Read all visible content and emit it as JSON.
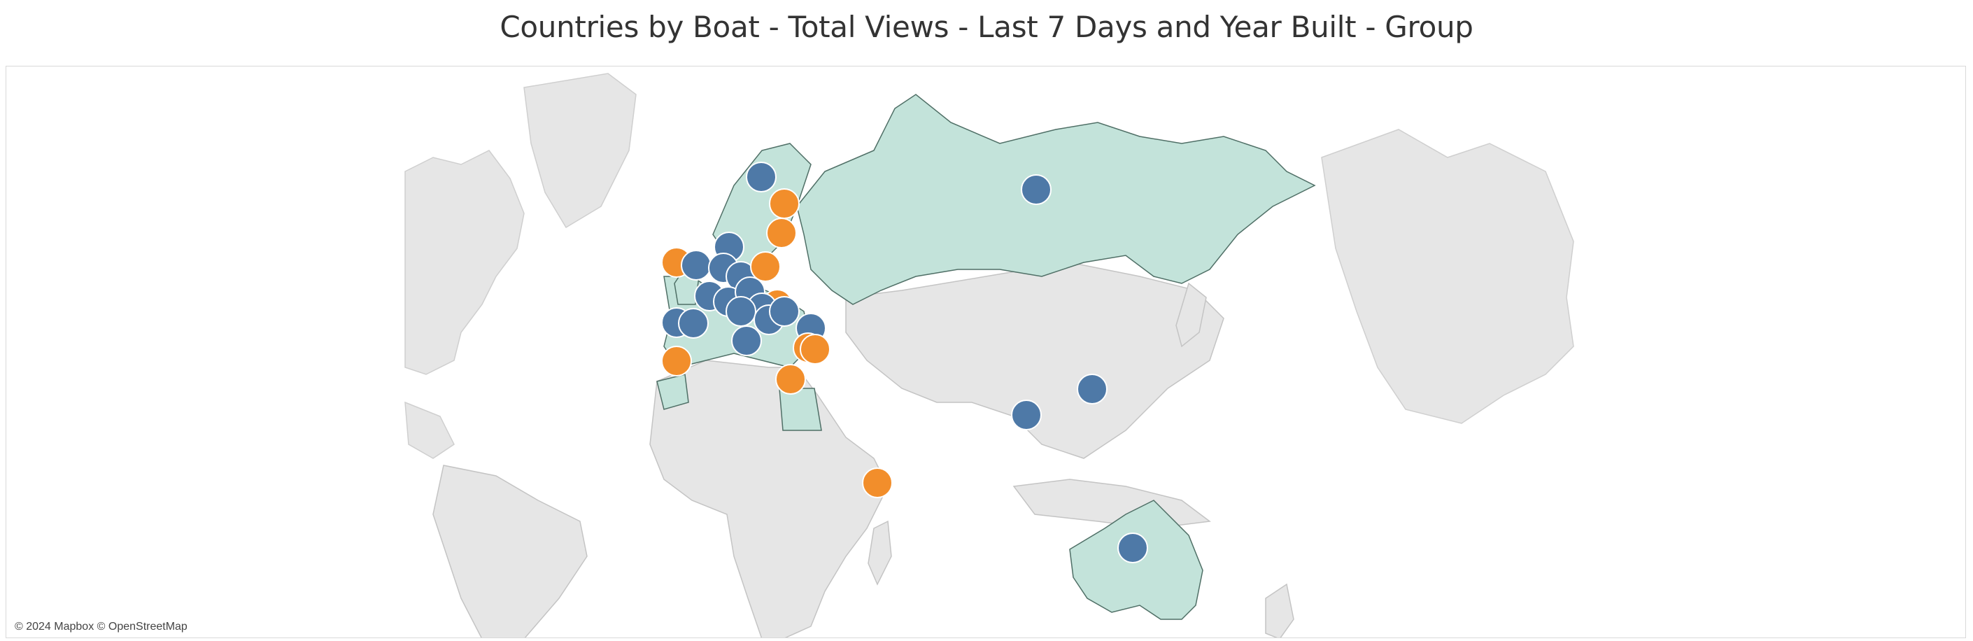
{
  "title": "Countries by Boat - Total Views - Last 7 Days  and Year Built - Group",
  "attribution": "© 2024 Mapbox © OpenStreetMap",
  "colors": {
    "land": "#e6e6e6",
    "land_border": "#c8c8c8",
    "highlight_land": "#c3e3da",
    "highlight_border": "#4f6f66",
    "group_blue": "#4e79a7",
    "group_orange": "#f28e2b",
    "marker_stroke": "#ffffff"
  },
  "map": {
    "basemap": "light world map",
    "highlighted_regions": [
      "russia",
      "nordic",
      "western-europe",
      "north-africa-egypt",
      "australia"
    ],
    "markers": [
      {
        "region": "Russia",
        "group": "blue"
      },
      {
        "region": "Norway",
        "group": "blue"
      },
      {
        "region": "Finland",
        "group": "orange"
      },
      {
        "region": "Baltics",
        "group": "orange"
      },
      {
        "region": "Denmark",
        "group": "blue"
      },
      {
        "region": "Ireland",
        "group": "orange"
      },
      {
        "region": "United Kingdom",
        "group": "blue"
      },
      {
        "region": "Netherlands",
        "group": "blue"
      },
      {
        "region": "Germany",
        "group": "blue"
      },
      {
        "region": "Poland",
        "group": "orange"
      },
      {
        "region": "France",
        "group": "blue"
      },
      {
        "region": "Switzerland",
        "group": "blue"
      },
      {
        "region": "Austria",
        "group": "blue"
      },
      {
        "region": "Hungary",
        "group": "orange"
      },
      {
        "region": "Croatia",
        "group": "blue"
      },
      {
        "region": "Italy",
        "group": "blue"
      },
      {
        "region": "Greece",
        "group": "blue"
      },
      {
        "region": "Bulgaria",
        "group": "blue"
      },
      {
        "region": "Portugal",
        "group": "blue"
      },
      {
        "region": "Spain",
        "group": "blue"
      },
      {
        "region": "Malta",
        "group": "blue"
      },
      {
        "region": "Turkey",
        "group": "blue"
      },
      {
        "region": "Cyprus",
        "group": "orange"
      },
      {
        "region": "Israel",
        "group": "orange"
      },
      {
        "region": "Morocco",
        "group": "orange"
      },
      {
        "region": "Egypt",
        "group": "orange"
      },
      {
        "region": "Seychelles",
        "group": "orange"
      },
      {
        "region": "Thailand",
        "group": "blue"
      },
      {
        "region": "Hong Kong",
        "group": "blue"
      },
      {
        "region": "Australia",
        "group": "blue"
      }
    ]
  }
}
